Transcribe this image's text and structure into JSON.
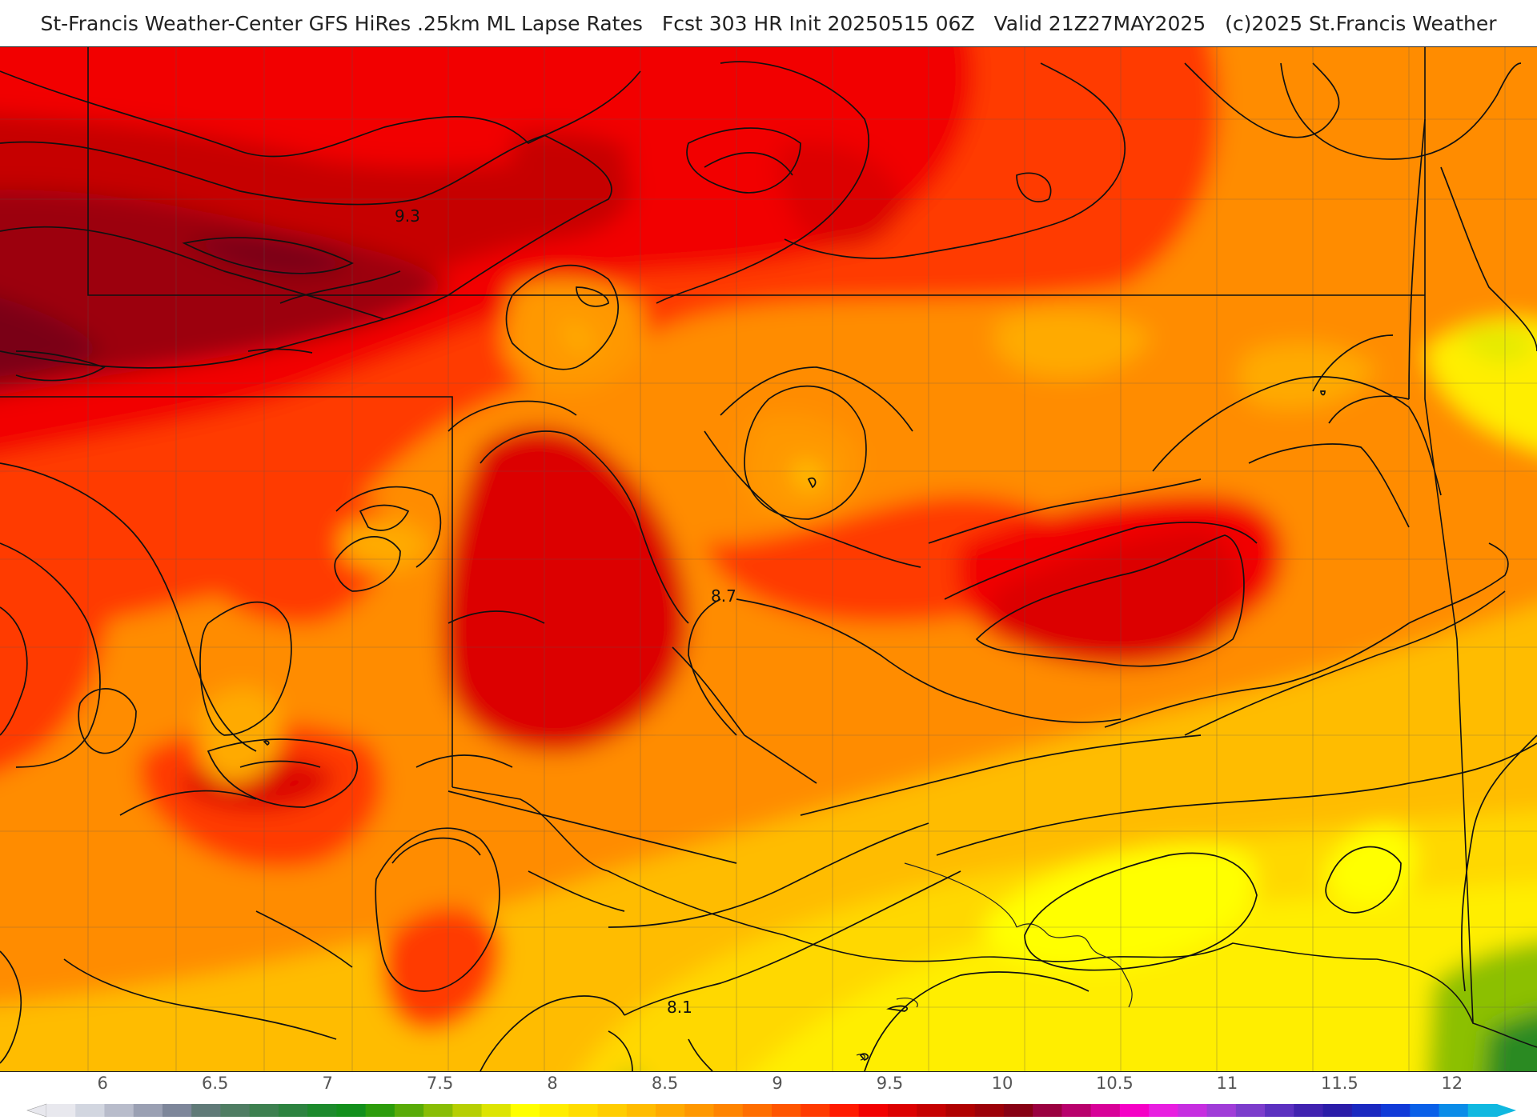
{
  "header": {
    "source": "St-Francis Weather-Center GFS HiRes .25km ML Lapse Rates",
    "forecast": "Fcst 303 HR Init 20250515 06Z",
    "valid": "Valid 21Z27MAY2025",
    "copyright": "(c)2025 St.Francis Weather"
  },
  "map": {
    "contour_labels": [
      {
        "text": "9.3"
      },
      {
        "text": "8.7"
      },
      {
        "text": "8.1"
      }
    ]
  },
  "colorbar": {
    "min": 5.75,
    "max": 12.2,
    "tick_labels": [
      "6",
      "6.5",
      "7",
      "7.5",
      "8",
      "8.5",
      "9",
      "9.5",
      "10",
      "10.5",
      "11",
      "11.5",
      "12"
    ],
    "tick_values": [
      6,
      6.5,
      7,
      7.5,
      8,
      8.5,
      9,
      9.5,
      10,
      10.5,
      11,
      11.5,
      12
    ],
    "colors": [
      "#e8e8ee",
      "#d2d6e0",
      "#b8bccb",
      "#9aa0b3",
      "#7d869a",
      "#607a78",
      "#4f7d63",
      "#3d8050",
      "#2c8340",
      "#1c8a2c",
      "#128f1c",
      "#2c9c0c",
      "#59ab08",
      "#88bd05",
      "#b6cf03",
      "#dde402",
      "#ffff00",
      "#ffed00",
      "#ffdd00",
      "#ffcd00",
      "#ffbc00",
      "#ffaa00",
      "#ff9800",
      "#ff8400",
      "#ff6e00",
      "#ff5500",
      "#ff3a00",
      "#ff1a00",
      "#f20000",
      "#dc0000",
      "#c60000",
      "#b00000",
      "#9c0008",
      "#870014",
      "#9a0040",
      "#b8006c",
      "#d80098",
      "#f500c6",
      "#e81ee0",
      "#c62ee0",
      "#a03cd8",
      "#7c3ccc",
      "#5b30c0",
      "#4022b0",
      "#2a1ca8",
      "#1a28c0",
      "#103ad8",
      "#0a60e8",
      "#0a8ce8",
      "#10b8e0"
    ]
  }
}
